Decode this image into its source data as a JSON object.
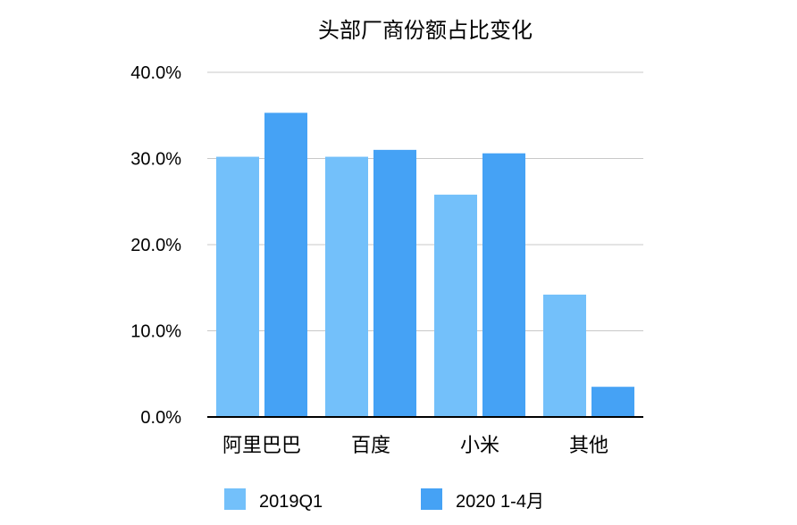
{
  "chart_data": {
    "type": "bar",
    "title": "头部厂商份额占比变化",
    "xlabel": "",
    "ylabel": "",
    "categories": [
      "阿里巴巴",
      "百度",
      "小米",
      "其他"
    ],
    "series": [
      {
        "name": "2019Q1",
        "color": "#73C0FA",
        "values": [
          30.2,
          30.2,
          25.8,
          14.2
        ]
      },
      {
        "name": "2020 1-4月",
        "color": "#45A2F5",
        "values": [
          35.3,
          31.0,
          30.6,
          3.5
        ]
      }
    ],
    "ylim": [
      0,
      40
    ],
    "yticks": [
      "0.0%",
      "10.0%",
      "20.0%",
      "30.0%",
      "40.0%"
    ],
    "grid": true,
    "legend_position": "bottom"
  }
}
